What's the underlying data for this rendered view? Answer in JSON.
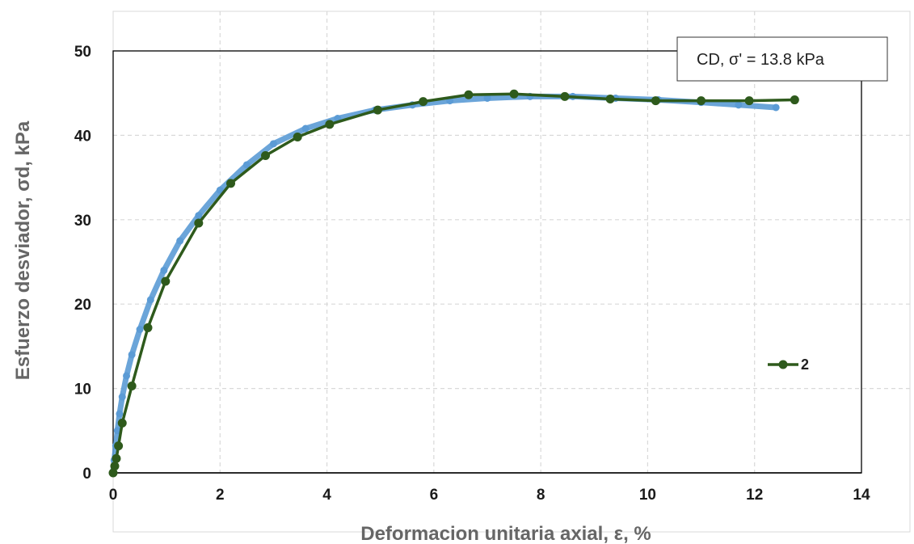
{
  "chart_data": {
    "type": "line",
    "xlabel": "Deformacion unitaria axial, ε, %",
    "ylabel": "Esfuerzo desviador, σd, kPa",
    "xlim": [
      0,
      14
    ],
    "ylim": [
      0,
      50
    ],
    "xticks": [
      "0",
      "2",
      "4",
      "6",
      "8",
      "10",
      "12",
      "14"
    ],
    "yticks": [
      "0",
      "10",
      "20",
      "30",
      "40",
      "50"
    ],
    "grid": true,
    "annotation": "CD, σ' = 13.8 kPa",
    "legend_position": "right",
    "series": [
      {
        "name": "",
        "color": "#5B9BD5",
        "x": [
          0,
          0.02,
          0.05,
          0.08,
          0.12,
          0.17,
          0.25,
          0.35,
          0.5,
          0.7,
          0.95,
          1.25,
          1.6,
          2.0,
          2.5,
          3.0,
          3.6,
          4.2,
          4.9,
          5.6,
          6.3,
          7.0,
          7.8,
          8.6,
          9.4,
          10.2,
          11.0,
          11.7,
          12.4
        ],
        "y": [
          0,
          1.5,
          3.2,
          5,
          7,
          9,
          11.5,
          14,
          17,
          20.5,
          24,
          27.5,
          30.5,
          33.5,
          36.5,
          39,
          40.8,
          42,
          43,
          43.6,
          44.1,
          44.4,
          44.6,
          44.6,
          44.4,
          44.2,
          43.9,
          43.6,
          43.3
        ]
      },
      {
        "name": "2",
        "color": "#2E5A1C",
        "x": [
          0,
          0.03,
          0.06,
          0.1,
          0.17,
          0.35,
          0.65,
          0.98,
          1.6,
          2.2,
          2.85,
          3.45,
          4.05,
          4.95,
          5.8,
          6.65,
          7.5,
          8.45,
          9.3,
          10.15,
          11.0,
          11.9,
          12.75
        ],
        "y": [
          0,
          0.8,
          1.7,
          3.2,
          5.9,
          10.3,
          17.2,
          22.7,
          29.6,
          34.3,
          37.6,
          39.8,
          41.3,
          43.0,
          44.0,
          44.8,
          44.9,
          44.6,
          44.3,
          44.1,
          44.1,
          44.1,
          44.2
        ]
      }
    ]
  }
}
